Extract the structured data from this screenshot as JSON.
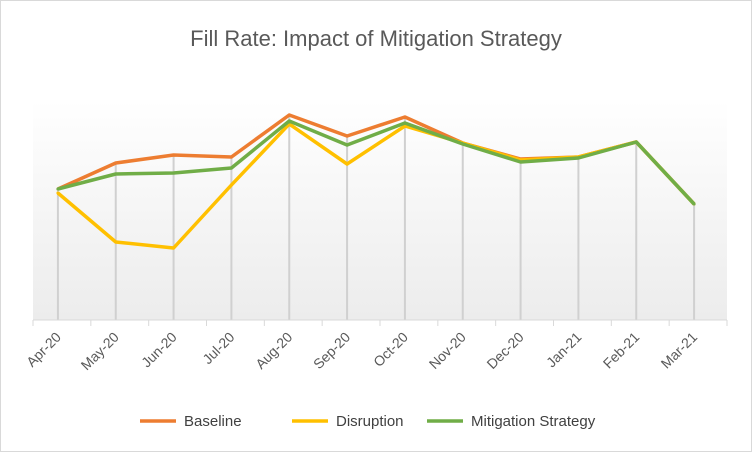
{
  "chart_data": {
    "type": "line",
    "title": "Fill Rate: Impact of Mitigation Strategy",
    "xlabel": "",
    "ylabel": "",
    "categories": [
      "Apr-20",
      "May-20",
      "Jun-20",
      "Jul-20",
      "Aug-20",
      "Sep-20",
      "Oct-20",
      "Nov-20",
      "Dec-20",
      "Jan-21",
      "Feb-21",
      "Mar-21"
    ],
    "ylim": [
      0,
      220
    ],
    "y_axis_labels_shown": false,
    "grid": false,
    "drop_lines": true,
    "legend_position": "bottom",
    "series": [
      {
        "name": "Baseline",
        "color": "#ED7D31",
        "values": [
          131,
          157,
          165,
          163,
          205,
          184,
          203,
          177,
          161,
          163,
          178,
          116
        ]
      },
      {
        "name": "Disruption",
        "color": "#FFC000",
        "values": [
          127,
          78,
          72,
          135,
          196,
          156,
          194,
          177,
          160,
          163,
          178,
          116
        ]
      },
      {
        "name": "Mitigation Strategy",
        "color": "#70AD47",
        "values": [
          131,
          146,
          147,
          152,
          199,
          175,
          197,
          176,
          158,
          162,
          178,
          116
        ]
      }
    ]
  }
}
